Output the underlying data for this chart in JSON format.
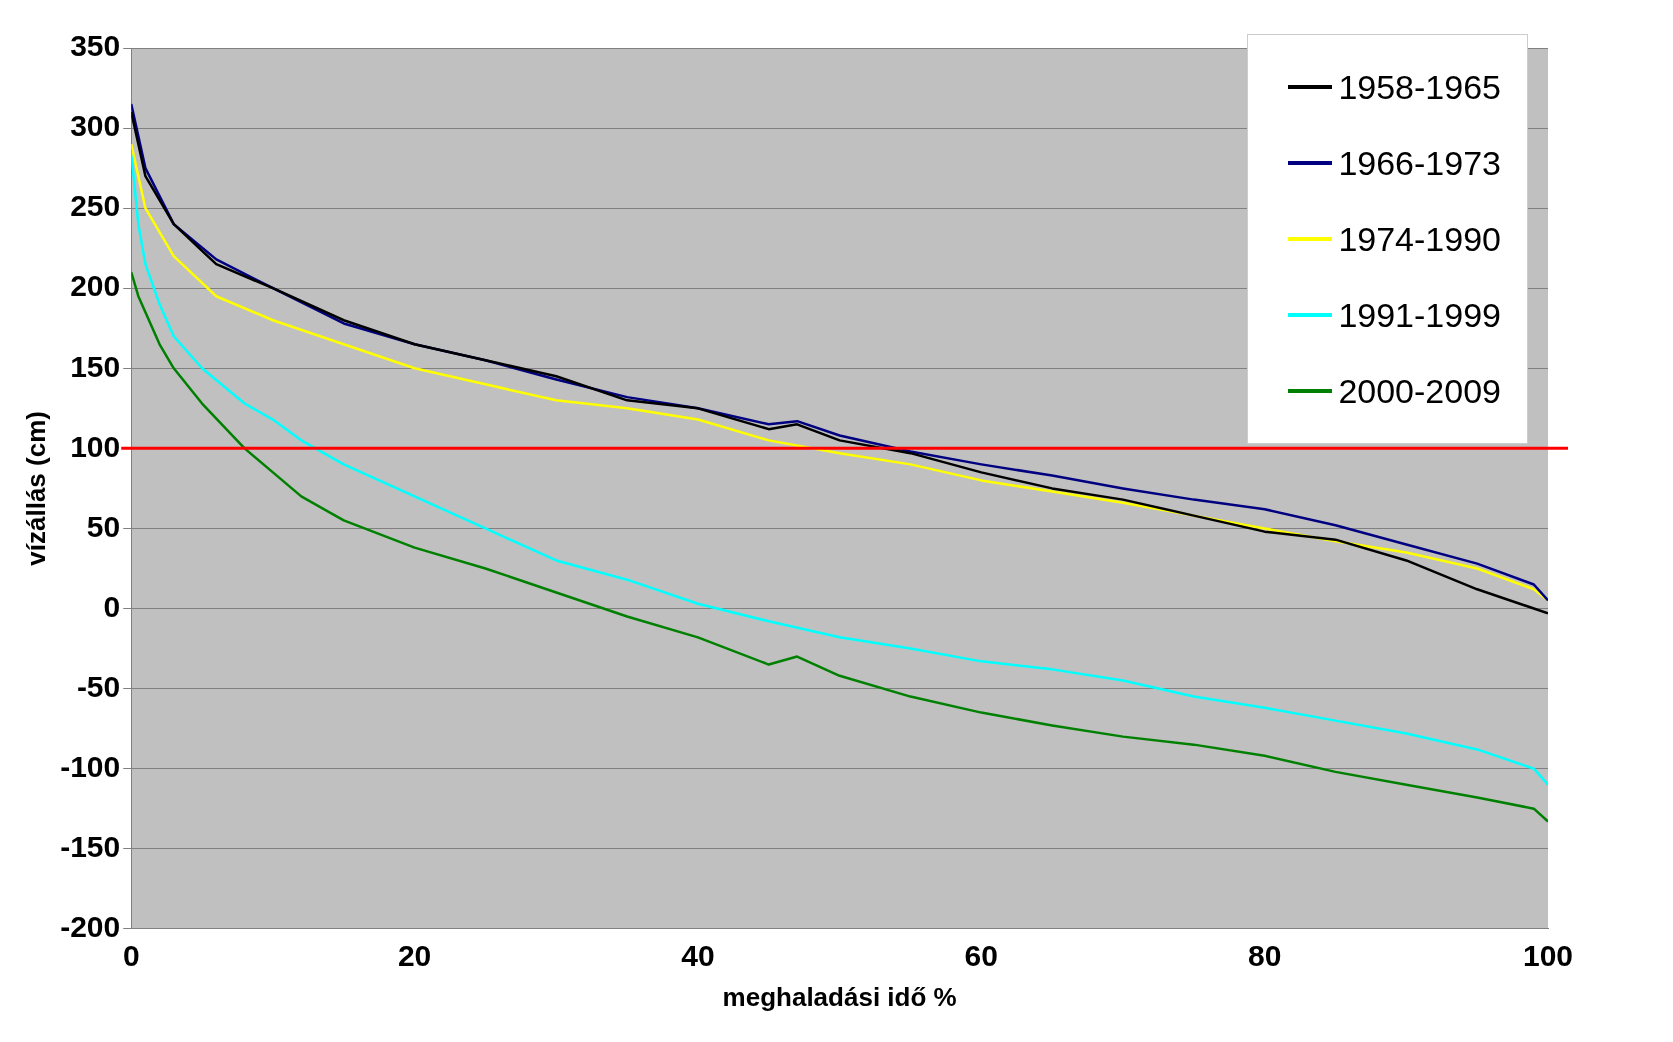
{
  "chart_data": {
    "type": "line",
    "xlabel": "meghaladási idő %",
    "ylabel": "vízállás (cm)",
    "xlim": [
      0,
      100
    ],
    "xticks": [
      0,
      20,
      40,
      60,
      80,
      100
    ],
    "ylim": [
      -200,
      350
    ],
    "yticks": [
      -200,
      -150,
      -100,
      -50,
      0,
      50,
      100,
      150,
      200,
      250,
      300,
      350
    ],
    "grid": "y",
    "legend": "top right",
    "marker": "none",
    "line_style": "solid",
    "ref_lines": [
      {
        "axis": "y",
        "value": 100,
        "color": "#ff0000"
      }
    ],
    "series": [
      {
        "name": "1958-1965",
        "color": "#000000",
        "x": [
          0,
          1,
          3,
          6,
          10,
          15,
          20,
          25,
          30,
          35,
          40,
          45,
          47,
          50,
          55,
          60,
          65,
          70,
          75,
          80,
          85,
          90,
          95,
          99,
          100
        ],
        "values": [
          310,
          270,
          240,
          215,
          200,
          180,
          165,
          155,
          145,
          130,
          125,
          112,
          115,
          105,
          97,
          85,
          75,
          68,
          58,
          48,
          43,
          30,
          12,
          0,
          -3
        ]
      },
      {
        "name": "1966-1973",
        "color": "#000080",
        "x": [
          0,
          1,
          3,
          6,
          10,
          15,
          20,
          25,
          30,
          35,
          40,
          45,
          47,
          50,
          55,
          60,
          65,
          70,
          75,
          80,
          85,
          90,
          95,
          99,
          100
        ],
        "values": [
          315,
          275,
          240,
          218,
          200,
          178,
          165,
          155,
          143,
          132,
          125,
          115,
          117,
          108,
          98,
          90,
          83,
          75,
          68,
          62,
          52,
          40,
          28,
          15,
          5
        ]
      },
      {
        "name": "1974-1990",
        "color": "#ffff00",
        "x": [
          0,
          1,
          3,
          6,
          10,
          15,
          20,
          25,
          30,
          35,
          40,
          45,
          50,
          55,
          60,
          65,
          70,
          75,
          80,
          85,
          90,
          95,
          99,
          100
        ],
        "values": [
          290,
          250,
          220,
          195,
          180,
          165,
          150,
          140,
          130,
          125,
          118,
          105,
          97,
          90,
          80,
          73,
          66,
          58,
          50,
          42,
          35,
          25,
          12,
          5
        ]
      },
      {
        "name": "1991-1999",
        "color": "#00ffff",
        "x": [
          0,
          0.5,
          1,
          2,
          3,
          5,
          8,
          10,
          12,
          15,
          20,
          25,
          30,
          35,
          40,
          45,
          50,
          55,
          60,
          65,
          70,
          75,
          80,
          85,
          90,
          95,
          99,
          100
        ],
        "values": [
          285,
          240,
          215,
          190,
          170,
          150,
          128,
          118,
          105,
          90,
          70,
          50,
          30,
          18,
          3,
          -8,
          -18,
          -25,
          -33,
          -38,
          -45,
          -55,
          -62,
          -70,
          -78,
          -88,
          -100,
          -110
        ]
      },
      {
        "name": "2000-2009",
        "color": "#008000",
        "x": [
          0,
          0.5,
          1,
          2,
          3,
          5,
          8,
          10,
          12,
          15,
          20,
          25,
          30,
          35,
          40,
          45,
          47,
          50,
          55,
          60,
          65,
          70,
          75,
          80,
          85,
          90,
          95,
          99,
          100
        ],
        "values": [
          210,
          195,
          185,
          165,
          150,
          128,
          100,
          85,
          70,
          55,
          38,
          25,
          10,
          -5,
          -18,
          -35,
          -30,
          -42,
          -55,
          -65,
          -73,
          -80,
          -85,
          -92,
          -102,
          -110,
          -118,
          -125,
          -133
        ]
      }
    ]
  }
}
